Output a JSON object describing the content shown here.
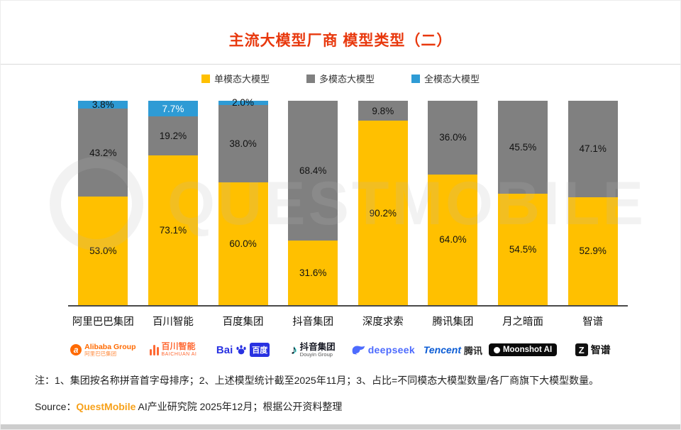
{
  "title": "主流大模型厂商 模型类型（二）",
  "colors": {
    "title": "#E8380D",
    "single_modal": "#FFC000",
    "multi_modal": "#808080",
    "omni_modal": "#2E9BD5",
    "brand_orange": "#F7A11A",
    "axis": "#4A4A4A"
  },
  "legend": [
    {
      "label": "单模态大模型",
      "color": "#FFC000"
    },
    {
      "label": "多模态大模型",
      "color": "#808080"
    },
    {
      "label": "全模态大模型",
      "color": "#2E9BD5"
    }
  ],
  "chart_data": {
    "type": "bar",
    "stacked": true,
    "unit": "%",
    "title": "主流大模型厂商 模型类型（二）",
    "categories": [
      "阿里巴巴集团",
      "百川智能",
      "百度集团",
      "抖音集团",
      "深度求索",
      "腾讯集团",
      "月之暗面",
      "智谱"
    ],
    "series": [
      {
        "name": "单模态大模型",
        "color": "#FFC000",
        "values": [
          53.0,
          73.1,
          60.0,
          31.6,
          90.2,
          64.0,
          54.5,
          52.9
        ]
      },
      {
        "name": "多模态大模型",
        "color": "#808080",
        "values": [
          43.2,
          19.2,
          38.0,
          68.4,
          9.8,
          36.0,
          45.5,
          47.1
        ]
      },
      {
        "name": "全模态大模型",
        "color": "#2E9BD5",
        "values": [
          3.8,
          7.7,
          2.0,
          0,
          0,
          0,
          0,
          0
        ]
      }
    ],
    "xlabel": "",
    "ylabel": "",
    "ylim": [
      0,
      100
    ],
    "grid": false,
    "legend_position": "top"
  },
  "logos": {
    "alibaba": {
      "icon": "a",
      "en": "Alibaba Group",
      "cn": "阿里巴巴集团"
    },
    "baichuan": {
      "cn": "百川智能",
      "en": "BAICHUAN AI"
    },
    "baidu": {
      "bai": "Bai",
      "du": "百度"
    },
    "douyin": {
      "note": "♪",
      "cn": "抖音集团",
      "en": "Douyin Group"
    },
    "deepseek": {
      "en": "deepseek"
    },
    "tencent": {
      "en": "Tencent",
      "cn": "腾讯"
    },
    "moonshot": {
      "en": "Moonshot AI"
    },
    "zhipu": {
      "z": "Z",
      "cn": "智谱"
    }
  },
  "watermark": "QUESTMOBILE",
  "note": "注：1、集团按名称拼音首字母排序；2、上述模型统计截至2025年11月；3、占比=不同模态大模型数量/各厂商旗下大模型数量。",
  "source": {
    "prefix": "Source：",
    "brand": "QuestMobile",
    "rest": " AI产业研究院 2025年12月；根据公开资料整理"
  }
}
